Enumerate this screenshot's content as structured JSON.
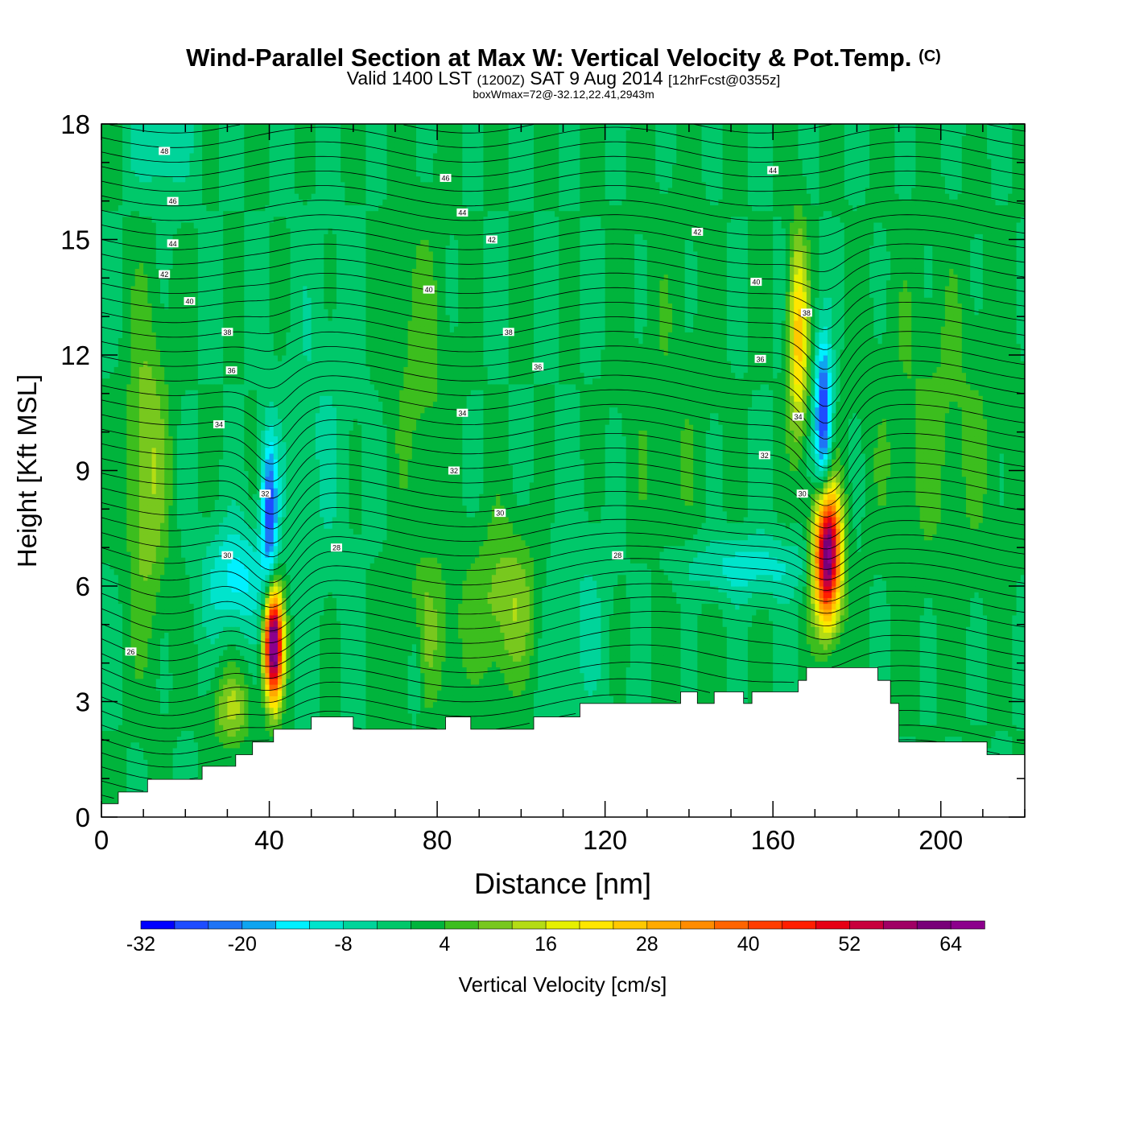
{
  "title": {
    "main": "Wind-Parallel Section at Max W: Vertical Velocity & Pot.Temp.",
    "copyright": "(C)",
    "valid_prefix": "Valid 1400 LST",
    "valid_utc": "(1200Z)",
    "valid_date": "SAT 9 Aug 2014",
    "forecast": "[12hrFcst@0355z]",
    "box_wmax": "boxWmax=72@-32.12,22.41,2943m"
  },
  "chart_data": {
    "type": "heatmap",
    "xlabel": "Distance [nm]",
    "ylabel": "Height [Kft MSL]",
    "xlim": [
      0,
      220
    ],
    "ylim": [
      0,
      18
    ],
    "xticks": [
      "0",
      "40",
      "80",
      "120",
      "160",
      "200"
    ],
    "yticks": [
      "0",
      "3",
      "6",
      "9",
      "12",
      "15",
      "18"
    ],
    "terrain_kft": [
      [
        0,
        0.35
      ],
      [
        4,
        0.35
      ],
      [
        4,
        0.65
      ],
      [
        11,
        0.65
      ],
      [
        11,
        0.98
      ],
      [
        24,
        0.98
      ],
      [
        24,
        1.32
      ],
      [
        32,
        1.32
      ],
      [
        32,
        1.62
      ],
      [
        36,
        1.62
      ],
      [
        36,
        1.95
      ],
      [
        41,
        1.95
      ],
      [
        41,
        2.28
      ],
      [
        50,
        2.28
      ],
      [
        50,
        2.6
      ],
      [
        60,
        2.6
      ],
      [
        60,
        2.28
      ],
      [
        82,
        2.28
      ],
      [
        82,
        2.6
      ],
      [
        88,
        2.6
      ],
      [
        88,
        2.28
      ],
      [
        103,
        2.28
      ],
      [
        103,
        2.6
      ],
      [
        114,
        2.6
      ],
      [
        114,
        2.95
      ],
      [
        138,
        2.95
      ],
      [
        138,
        3.25
      ],
      [
        142,
        3.25
      ],
      [
        142,
        2.95
      ],
      [
        146,
        2.95
      ],
      [
        146,
        3.25
      ],
      [
        153,
        3.25
      ],
      [
        153,
        2.95
      ],
      [
        155,
        2.95
      ],
      [
        155,
        3.25
      ],
      [
        166,
        3.25
      ],
      [
        166,
        3.55
      ],
      [
        168,
        3.55
      ],
      [
        168,
        3.88
      ],
      [
        185,
        3.88
      ],
      [
        185,
        3.55
      ],
      [
        188,
        3.55
      ],
      [
        188,
        2.95
      ],
      [
        190,
        2.95
      ],
      [
        190,
        1.95
      ],
      [
        211,
        1.95
      ],
      [
        211,
        1.62
      ],
      [
        220,
        1.62
      ]
    ],
    "theta_contour_labels": [
      {
        "x": 15,
        "y": 17.3,
        "label": "48"
      },
      {
        "x": 17,
        "y": 16.0,
        "label": "46"
      },
      {
        "x": 17,
        "y": 14.9,
        "label": "44"
      },
      {
        "x": 15,
        "y": 14.1,
        "label": "42"
      },
      {
        "x": 21,
        "y": 13.4,
        "label": "40"
      },
      {
        "x": 30,
        "y": 12.6,
        "label": "38"
      },
      {
        "x": 31,
        "y": 11.6,
        "label": "36"
      },
      {
        "x": 28,
        "y": 10.2,
        "label": "34"
      },
      {
        "x": 39,
        "y": 8.4,
        "label": "32"
      },
      {
        "x": 30,
        "y": 6.8,
        "label": "30"
      },
      {
        "x": 7,
        "y": 4.3,
        "label": "26"
      },
      {
        "x": 82,
        "y": 16.6,
        "label": "46"
      },
      {
        "x": 86,
        "y": 15.7,
        "label": "44"
      },
      {
        "x": 93,
        "y": 15.0,
        "label": "42"
      },
      {
        "x": 78,
        "y": 13.7,
        "label": "40"
      },
      {
        "x": 97,
        "y": 12.6,
        "label": "38"
      },
      {
        "x": 104,
        "y": 11.7,
        "label": "36"
      },
      {
        "x": 86,
        "y": 10.5,
        "label": "34"
      },
      {
        "x": 84,
        "y": 9.0,
        "label": "32"
      },
      {
        "x": 95,
        "y": 7.9,
        "label": "30"
      },
      {
        "x": 56,
        "y": 7.0,
        "label": "28"
      },
      {
        "x": 123,
        "y": 6.8,
        "label": "28"
      },
      {
        "x": 160,
        "y": 16.8,
        "label": "44"
      },
      {
        "x": 142,
        "y": 15.2,
        "label": "42"
      },
      {
        "x": 156,
        "y": 13.9,
        "label": "40"
      },
      {
        "x": 168,
        "y": 13.1,
        "label": "38"
      },
      {
        "x": 157,
        "y": 11.9,
        "label": "36"
      },
      {
        "x": 166,
        "y": 10.4,
        "label": "34"
      },
      {
        "x": 158,
        "y": 9.4,
        "label": "32"
      },
      {
        "x": 167,
        "y": 8.4,
        "label": "30"
      }
    ],
    "w_cells": [
      {
        "x": 41,
        "y": 4.5,
        "sx": 1.5,
        "sy": 1.0,
        "w": 72
      },
      {
        "x": 40,
        "y": 8.0,
        "sx": 1.4,
        "sy": 1.4,
        "w": -26
      },
      {
        "x": 32,
        "y": 6.2,
        "sx": 5.0,
        "sy": 1.0,
        "w": -14
      },
      {
        "x": 173,
        "y": 6.8,
        "sx": 2.2,
        "sy": 1.2,
        "w": 70
      },
      {
        "x": 172,
        "y": 10.3,
        "sx": 1.4,
        "sy": 1.5,
        "w": -30
      },
      {
        "x": 166,
        "y": 12.5,
        "sx": 1.6,
        "sy": 1.8,
        "w": 26
      },
      {
        "x": 154,
        "y": 6.5,
        "sx": 12.0,
        "sy": 0.6,
        "w": -10
      },
      {
        "x": 11,
        "y": 9.0,
        "sx": 3.5,
        "sy": 3.0,
        "w": 12
      },
      {
        "x": 31,
        "y": 2.8,
        "sx": 3.0,
        "sy": 0.7,
        "w": 13
      },
      {
        "x": 97,
        "y": 5.5,
        "sx": 6.0,
        "sy": 1.5,
        "w": 12
      },
      {
        "x": 78,
        "y": 4.8,
        "sx": 5.0,
        "sy": 1.5,
        "w": 8
      },
      {
        "x": 76,
        "y": 12.0,
        "sx": 5.0,
        "sy": 2.5,
        "w": 6
      },
      {
        "x": 200,
        "y": 10.0,
        "sx": 12.0,
        "sy": 3.0,
        "w": 5
      },
      {
        "x": 75,
        "y": 4.0,
        "sx": 1.3,
        "sy": 1.0,
        "w": -8
      },
      {
        "x": 112,
        "y": 5.0,
        "sx": 7.0,
        "sy": 2.0,
        "w": -5
      },
      {
        "x": 14,
        "y": 17.5,
        "sx": 5.0,
        "sy": 1.0,
        "w": -8
      },
      {
        "x": 52,
        "y": 10.0,
        "sx": 6.0,
        "sy": 3.0,
        "w": -4
      },
      {
        "x": 135,
        "y": 10.0,
        "sx": 8.0,
        "sy": 4.0,
        "w": 3
      }
    ],
    "w_background": 0,
    "colorbar": {
      "label": "Vertical Velocity [cm/s]",
      "tick_labels": [
        "-32",
        "-20",
        "-8",
        "4",
        "16",
        "28",
        "40",
        "52",
        "64"
      ],
      "levels": [
        -32,
        -28,
        -24,
        -20,
        -16,
        -12,
        -8,
        -4,
        0,
        4,
        8,
        12,
        16,
        20,
        24,
        28,
        32,
        36,
        40,
        44,
        48,
        52,
        56,
        60,
        64,
        68
      ],
      "colors": [
        "#0000ff",
        "#1e4cff",
        "#1f74f5",
        "#0fa4f0",
        "#00f0ff",
        "#00e4cc",
        "#00d49a",
        "#00c86a",
        "#00b43c",
        "#3cbe1e",
        "#78c81e",
        "#b4dc14",
        "#e6f000",
        "#ffe600",
        "#ffc800",
        "#ffaa00",
        "#ff8c00",
        "#ff6400",
        "#ff3c00",
        "#ff1e00",
        "#e60014",
        "#c8003c",
        "#a00064",
        "#780078",
        "#8c008c"
      ]
    }
  }
}
